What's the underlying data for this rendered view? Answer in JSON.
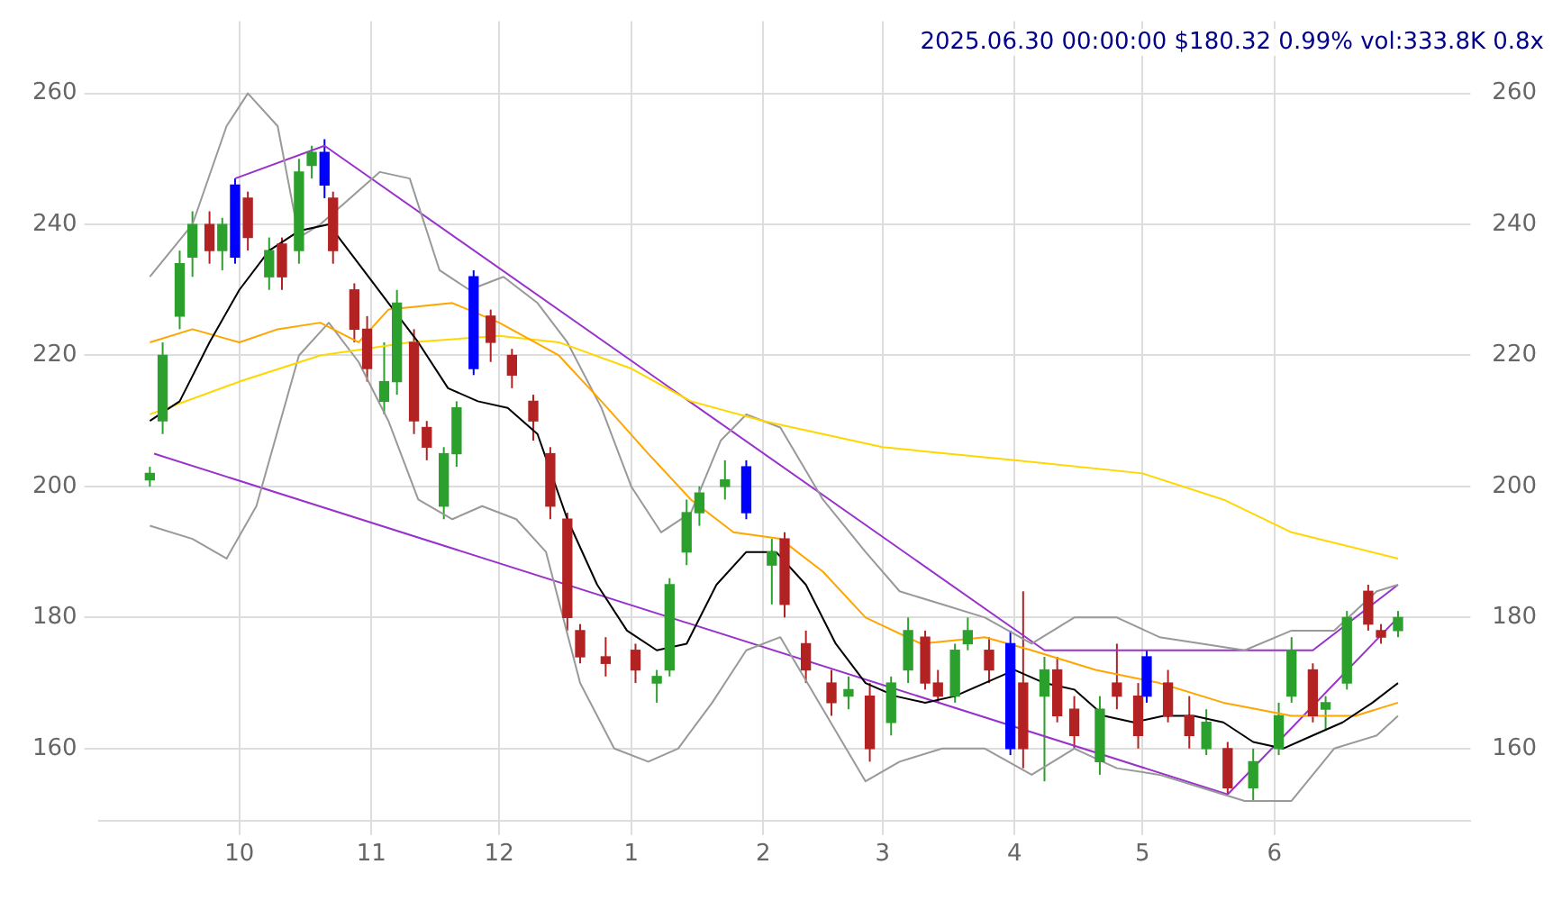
{
  "chart_data": {
    "type": "candlestick",
    "title": "2025.06.30 00:00:00 $180.32 0.99% vol:333.8K 0.8x",
    "xlim": [
      "2024-08-29",
      "2025-07-17"
    ],
    "xticks": [
      {
        "value": "2024-10-01",
        "label": "10"
      },
      {
        "value": "2024-11-01",
        "label": "11"
      },
      {
        "value": "2024-12-01",
        "label": "12"
      },
      {
        "value": "2025-01-01",
        "label": "1"
      },
      {
        "value": "2025-02-01",
        "label": "2"
      },
      {
        "value": "2025-03-01",
        "label": "3"
      },
      {
        "value": "2025-04-01",
        "label": "4"
      },
      {
        "value": "2025-05-01",
        "label": "5"
      },
      {
        "value": "2025-06-01",
        "label": "6"
      }
    ],
    "ylim": [
      149,
      271
    ],
    "yticks": [
      160,
      180,
      200,
      220,
      240,
      260
    ],
    "y2lim": [
      149,
      271
    ],
    "y2ticks": [
      160,
      180,
      200,
      220,
      240,
      260
    ],
    "grid": true,
    "legend": false,
    "x": [
      "2024-09-10",
      "2024-09-13",
      "2024-09-17",
      "2024-09-20",
      "2024-09-24",
      "2024-09-27",
      "2024-09-30",
      "2024-10-03",
      "2024-10-08",
      "2024-10-11",
      "2024-10-15",
      "2024-10-18",
      "2024-10-21",
      "2024-10-23",
      "2024-10-28",
      "2024-10-31",
      "2024-11-04",
      "2024-11-07",
      "2024-11-11",
      "2024-11-14",
      "2024-11-18",
      "2024-11-21",
      "2024-11-25",
      "2024-11-29",
      "2024-12-04",
      "2024-12-09",
      "2024-12-13",
      "2024-12-17",
      "2024-12-20",
      "2024-12-26",
      "2025-01-02",
      "2025-01-07",
      "2025-01-10",
      "2025-01-14",
      "2025-01-17",
      "2025-01-23",
      "2025-01-28",
      "2025-02-03",
      "2025-02-06",
      "2025-02-11",
      "2025-02-17",
      "2025-02-21",
      "2025-02-26",
      "2025-03-03",
      "2025-03-07",
      "2025-03-11",
      "2025-03-14",
      "2025-03-18",
      "2025-03-21",
      "2025-03-26",
      "2025-03-31",
      "2025-04-03",
      "2025-04-08",
      "2025-04-11",
      "2025-04-15",
      "2025-04-21",
      "2025-04-25",
      "2025-04-30",
      "2025-05-02",
      "2025-05-07",
      "2025-05-12",
      "2025-05-16",
      "2025-05-21",
      "2025-05-27",
      "2025-06-02",
      "2025-06-05",
      "2025-06-10",
      "2025-06-13",
      "2025-06-18",
      "2025-06-23",
      "2025-06-26",
      "2025-06-30"
    ],
    "ohlc": [
      [
        201,
        203,
        200,
        202
      ],
      [
        210,
        222,
        208,
        220
      ],
      [
        226,
        236,
        224,
        234
      ],
      [
        235,
        242,
        232,
        240
      ],
      [
        240,
        242,
        234,
        236
      ],
      [
        236,
        241,
        233,
        240
      ],
      [
        235,
        247,
        234,
        246
      ],
      [
        244,
        245,
        236,
        238
      ],
      [
        232,
        238,
        230,
        236
      ],
      [
        237,
        238,
        230,
        232
      ],
      [
        236,
        250,
        234,
        248
      ],
      [
        249,
        252,
        247,
        251
      ],
      [
        251,
        253,
        244,
        246
      ],
      [
        244,
        245,
        234,
        236
      ],
      [
        230,
        231,
        222,
        224
      ],
      [
        224,
        226,
        216,
        218
      ],
      [
        213,
        222,
        211,
        216
      ],
      [
        216,
        230,
        214,
        228
      ],
      [
        222,
        224,
        208,
        210
      ],
      [
        209,
        210,
        204,
        206
      ],
      [
        197,
        206,
        195,
        205
      ],
      [
        205,
        213,
        203,
        212
      ],
      [
        218,
        233,
        217,
        232
      ],
      [
        226,
        227,
        219,
        222
      ],
      [
        220,
        221,
        215,
        217
      ],
      [
        213,
        214,
        207,
        210
      ],
      [
        205,
        206,
        195,
        197
      ],
      [
        195,
        196,
        178,
        180
      ],
      [
        178,
        179,
        173,
        174
      ],
      [
        174,
        177,
        171,
        173
      ],
      [
        175,
        176,
        170,
        172
      ],
      [
        170,
        172,
        167,
        171
      ],
      [
        172,
        186,
        171,
        185
      ],
      [
        190,
        198,
        188,
        196
      ],
      [
        196,
        200,
        194,
        199
      ],
      [
        200,
        204,
        198,
        201
      ],
      [
        203,
        204,
        195,
        196
      ],
      [
        188,
        192,
        182,
        190
      ],
      [
        192,
        193,
        180,
        182
      ],
      [
        176,
        178,
        170,
        172
      ],
      [
        170,
        172,
        165,
        167
      ],
      [
        168,
        171,
        166,
        169
      ],
      [
        168,
        170,
        158,
        160
      ],
      [
        164,
        171,
        162,
        170
      ],
      [
        172,
        180,
        170,
        178
      ],
      [
        177,
        178,
        169,
        170
      ],
      [
        170,
        172,
        167,
        168
      ],
      [
        168,
        176,
        167,
        175
      ],
      [
        176,
        180,
        175,
        178
      ],
      [
        175,
        177,
        170,
        172
      ],
      [
        176,
        178,
        159,
        160
      ],
      [
        170,
        184,
        157,
        160
      ],
      [
        168,
        174,
        155,
        172
      ],
      [
        172,
        174,
        164,
        165
      ],
      [
        166,
        168,
        160,
        162
      ],
      [
        158,
        168,
        156,
        166
      ],
      [
        170,
        176,
        166,
        168
      ],
      [
        168,
        170,
        160,
        162
      ],
      [
        168,
        175,
        167,
        174
      ],
      [
        170,
        172,
        164,
        165
      ],
      [
        165,
        168,
        160,
        162
      ],
      [
        160,
        166,
        159,
        164
      ],
      [
        160,
        161,
        153,
        154
      ],
      [
        154,
        160,
        152,
        158
      ],
      [
        160,
        167,
        159,
        165
      ],
      [
        168,
        177,
        167,
        175
      ],
      [
        172,
        173,
        164,
        165
      ],
      [
        166,
        168,
        163,
        167
      ],
      [
        170,
        181,
        169,
        180
      ],
      [
        184,
        185,
        178,
        179
      ],
      [
        178,
        179,
        176,
        177
      ],
      [
        178,
        181,
        177,
        180
      ]
    ],
    "colors": [
      "#2ca02c",
      "#2ca02c",
      "#2ca02c",
      "#2ca02c",
      "#b22222",
      "#2ca02c",
      "#0000ff",
      "#b22222",
      "#2ca02c",
      "#b22222",
      "#2ca02c",
      "#2ca02c",
      "#0000ff",
      "#b22222",
      "#b22222",
      "#b22222",
      "#2ca02c",
      "#2ca02c",
      "#b22222",
      "#b22222",
      "#2ca02c",
      "#2ca02c",
      "#0000ff",
      "#b22222",
      "#b22222",
      "#b22222",
      "#b22222",
      "#b22222",
      "#b22222",
      "#b22222",
      "#b22222",
      "#2ca02c",
      "#2ca02c",
      "#2ca02c",
      "#2ca02c",
      "#2ca02c",
      "#0000ff",
      "#2ca02c",
      "#b22222",
      "#b22222",
      "#b22222",
      "#2ca02c",
      "#b22222",
      "#2ca02c",
      "#2ca02c",
      "#b22222",
      "#b22222",
      "#2ca02c",
      "#2ca02c",
      "#b22222",
      "#0000ff",
      "#b22222",
      "#2ca02c",
      "#b22222",
      "#b22222",
      "#2ca02c",
      "#b22222",
      "#b22222",
      "#0000ff",
      "#b22222",
      "#b22222",
      "#2ca02c",
      "#b22222",
      "#2ca02c",
      "#2ca02c",
      "#2ca02c",
      "#b22222",
      "#2ca02c",
      "#2ca02c",
      "#b22222",
      "#b22222",
      "#2ca02c"
    ],
    "series": [
      {
        "type": "line",
        "color": "#000000",
        "x": [
          "2024-09-10",
          "2024-09-17",
          "2024-09-24",
          "2024-10-01",
          "2024-10-08",
          "2024-10-15",
          "2024-10-22",
          "2024-10-29",
          "2024-11-05",
          "2024-11-12",
          "2024-11-19",
          "2024-11-26",
          "2024-12-03",
          "2024-12-10",
          "2024-12-17",
          "2024-12-24",
          "2024-12-31",
          "2025-01-07",
          "2025-01-14",
          "2025-01-21",
          "2025-01-28",
          "2025-02-04",
          "2025-02-11",
          "2025-02-18",
          "2025-02-25",
          "2025-03-04",
          "2025-03-11",
          "2025-03-18",
          "2025-03-25",
          "2025-04-01",
          "2025-04-08",
          "2025-04-15",
          "2025-04-22",
          "2025-04-29",
          "2025-05-06",
          "2025-05-13",
          "2025-05-20",
          "2025-05-27",
          "2025-06-03",
          "2025-06-10",
          "2025-06-17",
          "2025-06-24",
          "2025-06-30"
        ],
        "values": [
          210,
          213,
          222,
          230,
          236,
          239,
          240,
          234,
          228,
          222,
          215,
          213,
          212,
          208,
          195,
          185,
          178,
          175,
          176,
          185,
          190,
          190,
          185,
          176,
          170,
          168,
          167,
          168,
          170,
          172,
          170,
          169,
          165,
          164,
          165,
          165,
          164,
          161,
          160,
          162,
          164,
          167,
          170
        ]
      },
      {
        "type": "line",
        "color": "#ffa500",
        "x": [
          "2024-09-10",
          "2024-09-20",
          "2024-10-01",
          "2024-10-10",
          "2024-10-20",
          "2024-10-29",
          "2024-11-05",
          "2024-11-20",
          "2024-12-01",
          "2024-12-15",
          "2024-12-25",
          "2025-01-05",
          "2025-01-15",
          "2025-01-25",
          "2025-02-05",
          "2025-02-15",
          "2025-02-25",
          "2025-03-10",
          "2025-03-25",
          "2025-04-05",
          "2025-04-20",
          "2025-05-05",
          "2025-05-20",
          "2025-06-05",
          "2025-06-20",
          "2025-06-30"
        ],
        "values": [
          222,
          224,
          222,
          224,
          225,
          222,
          227,
          228,
          225,
          220,
          213,
          205,
          198,
          193,
          192,
          187,
          180,
          176,
          177,
          175,
          172,
          170,
          167,
          165,
          165,
          167
        ]
      },
      {
        "type": "line",
        "color": "#ffd700",
        "x": [
          "2024-09-10",
          "2024-10-01",
          "2024-10-20",
          "2024-11-10",
          "2024-12-01",
          "2024-12-15",
          "2025-01-01",
          "2025-01-15",
          "2025-02-01",
          "2025-02-15",
          "2025-03-01",
          "2025-04-01",
          "2025-05-01",
          "2025-05-20",
          "2025-06-05",
          "2025-06-30"
        ],
        "values": [
          211,
          216,
          220,
          222,
          223,
          222,
          218,
          213,
          210,
          208,
          206,
          204,
          202,
          198,
          193,
          189
        ]
      },
      {
        "type": "line",
        "color": "#999999",
        "x": [
          "2024-09-10",
          "2024-09-20",
          "2024-09-28",
          "2024-10-03",
          "2024-10-10",
          "2024-10-15",
          "2024-10-20",
          "2024-10-27",
          "2024-11-03",
          "2024-11-10",
          "2024-11-17",
          "2024-11-24",
          "2024-12-02",
          "2024-12-10",
          "2024-12-17",
          "2024-12-25",
          "2025-01-01",
          "2025-01-08",
          "2025-01-15",
          "2025-01-22",
          "2025-01-28",
          "2025-02-05",
          "2025-02-15",
          "2025-02-25",
          "2025-03-05",
          "2025-03-15",
          "2025-03-25",
          "2025-04-05",
          "2025-04-15",
          "2025-04-25",
          "2025-05-05",
          "2025-05-15",
          "2025-05-25",
          "2025-06-05",
          "2025-06-15",
          "2025-06-25",
          "2025-06-30"
        ],
        "values": [
          232,
          240,
          255,
          260,
          255,
          238,
          240,
          244,
          248,
          247,
          233,
          230,
          232,
          228,
          222,
          212,
          200,
          193,
          196,
          207,
          211,
          209,
          198,
          190,
          184,
          182,
          180,
          176,
          180,
          180,
          177,
          176,
          175,
          178,
          178,
          184,
          185
        ]
      },
      {
        "type": "line",
        "color": "#999999",
        "x": [
          "2024-09-10",
          "2024-09-20",
          "2024-09-28",
          "2024-10-05",
          "2024-10-15",
          "2024-10-22",
          "2024-10-29",
          "2024-11-05",
          "2024-11-12",
          "2024-11-20",
          "2024-11-27",
          "2024-12-05",
          "2024-12-12",
          "2024-12-20",
          "2024-12-28",
          "2025-01-05",
          "2025-01-12",
          "2025-01-20",
          "2025-01-28",
          "2025-02-05",
          "2025-02-15",
          "2025-02-25",
          "2025-03-05",
          "2025-03-15",
          "2025-03-25",
          "2025-04-05",
          "2025-04-15",
          "2025-04-25",
          "2025-05-05",
          "2025-05-15",
          "2025-05-25",
          "2025-06-05",
          "2025-06-15",
          "2025-06-25",
          "2025-06-30"
        ],
        "values": [
          194,
          192,
          189,
          197,
          220,
          225,
          219,
          210,
          198,
          195,
          197,
          195,
          190,
          170,
          160,
          158,
          160,
          167,
          175,
          177,
          166,
          155,
          158,
          160,
          160,
          156,
          160,
          157,
          156,
          154,
          152,
          152,
          160,
          162,
          165
        ]
      },
      {
        "type": "line",
        "color": "#9932cc",
        "x": [
          "2024-09-30",
          "2024-10-21",
          "2025-04-08",
          "2025-06-10",
          "2025-06-30"
        ],
        "values": [
          247,
          252,
          175,
          175,
          185
        ]
      },
      {
        "type": "line",
        "color": "#9932cc",
        "x": [
          "2024-09-11",
          "2025-05-21",
          "2025-06-30"
        ],
        "values": [
          205,
          153,
          180
        ]
      }
    ]
  }
}
